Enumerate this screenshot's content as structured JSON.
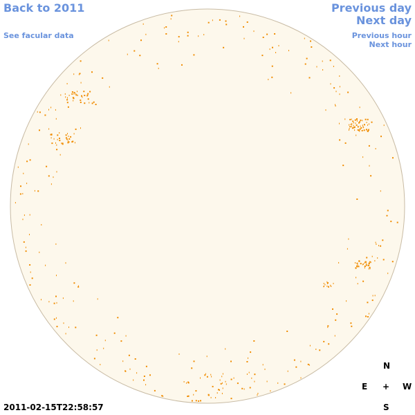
{
  "header": {
    "back_link": "Back to 2011",
    "facular_link": "See facular data",
    "previous_day": "Previous day",
    "next_day": "Next day",
    "previous_hour": "Previous hour",
    "next_hour": "Next hour"
  },
  "timestamp": "2011-02-15T22:58:57",
  "compass": {
    "north": "N",
    "east": "E",
    "center": "+",
    "west": "W",
    "south": "S"
  }
}
